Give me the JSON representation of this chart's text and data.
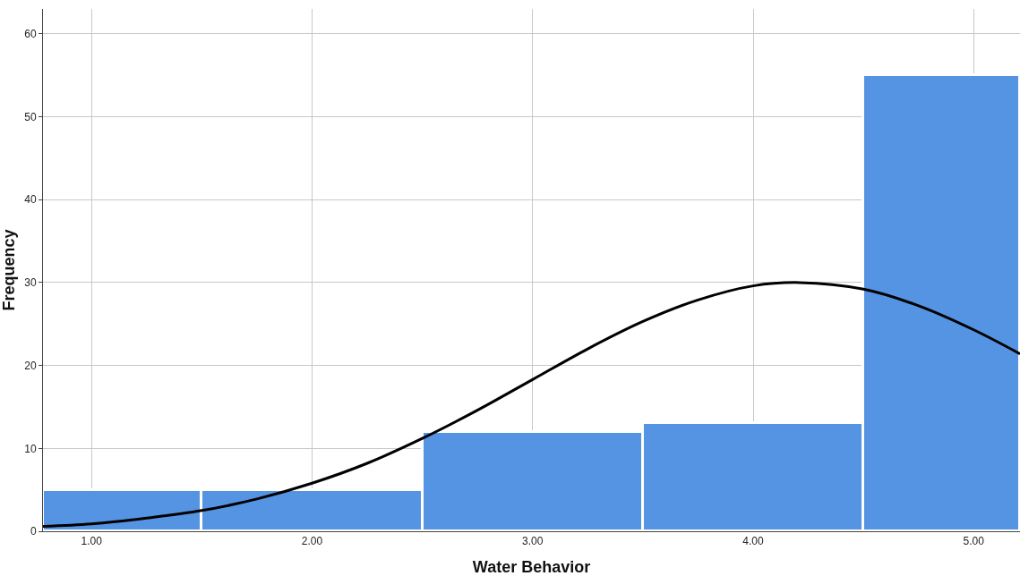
{
  "chart_data": {
    "type": "histogram",
    "xlabel": "Water Behavior",
    "ylabel": "Frequency",
    "bins": [
      0.78,
      1.5,
      2.5,
      3.5,
      4.5,
      5.21
    ],
    "values": [
      5,
      5,
      12,
      13,
      55
    ],
    "color": "#5594e2",
    "series": [
      {
        "type": "line",
        "color": "#000000",
        "x": [
          0.78,
          1.0,
          1.25,
          1.5,
          1.75,
          2.0,
          2.25,
          2.5,
          2.75,
          3.0,
          3.25,
          3.5,
          3.75,
          4.0,
          4.21,
          4.5,
          4.75,
          5.0,
          5.21
        ],
        "values": [
          0.6,
          0.9,
          1.6,
          2.5,
          3.9,
          5.8,
          8.2,
          11.2,
          14.6,
          18.3,
          22.0,
          25.3,
          27.9,
          29.6,
          30.0,
          29.2,
          27.2,
          24.3,
          21.4
        ]
      }
    ],
    "xlim": [
      0.78,
      5.21
    ],
    "xticks": [
      {
        "value": 1,
        "label": "1.00"
      },
      {
        "value": 2,
        "label": "2.00"
      },
      {
        "value": 3,
        "label": "3.00"
      },
      {
        "value": 4,
        "label": "4.00"
      },
      {
        "value": 5,
        "label": "5.00"
      }
    ],
    "ylim": [
      0,
      63
    ],
    "yticks": [
      0,
      10,
      20,
      30,
      40,
      50,
      60
    ],
    "grid": true
  }
}
